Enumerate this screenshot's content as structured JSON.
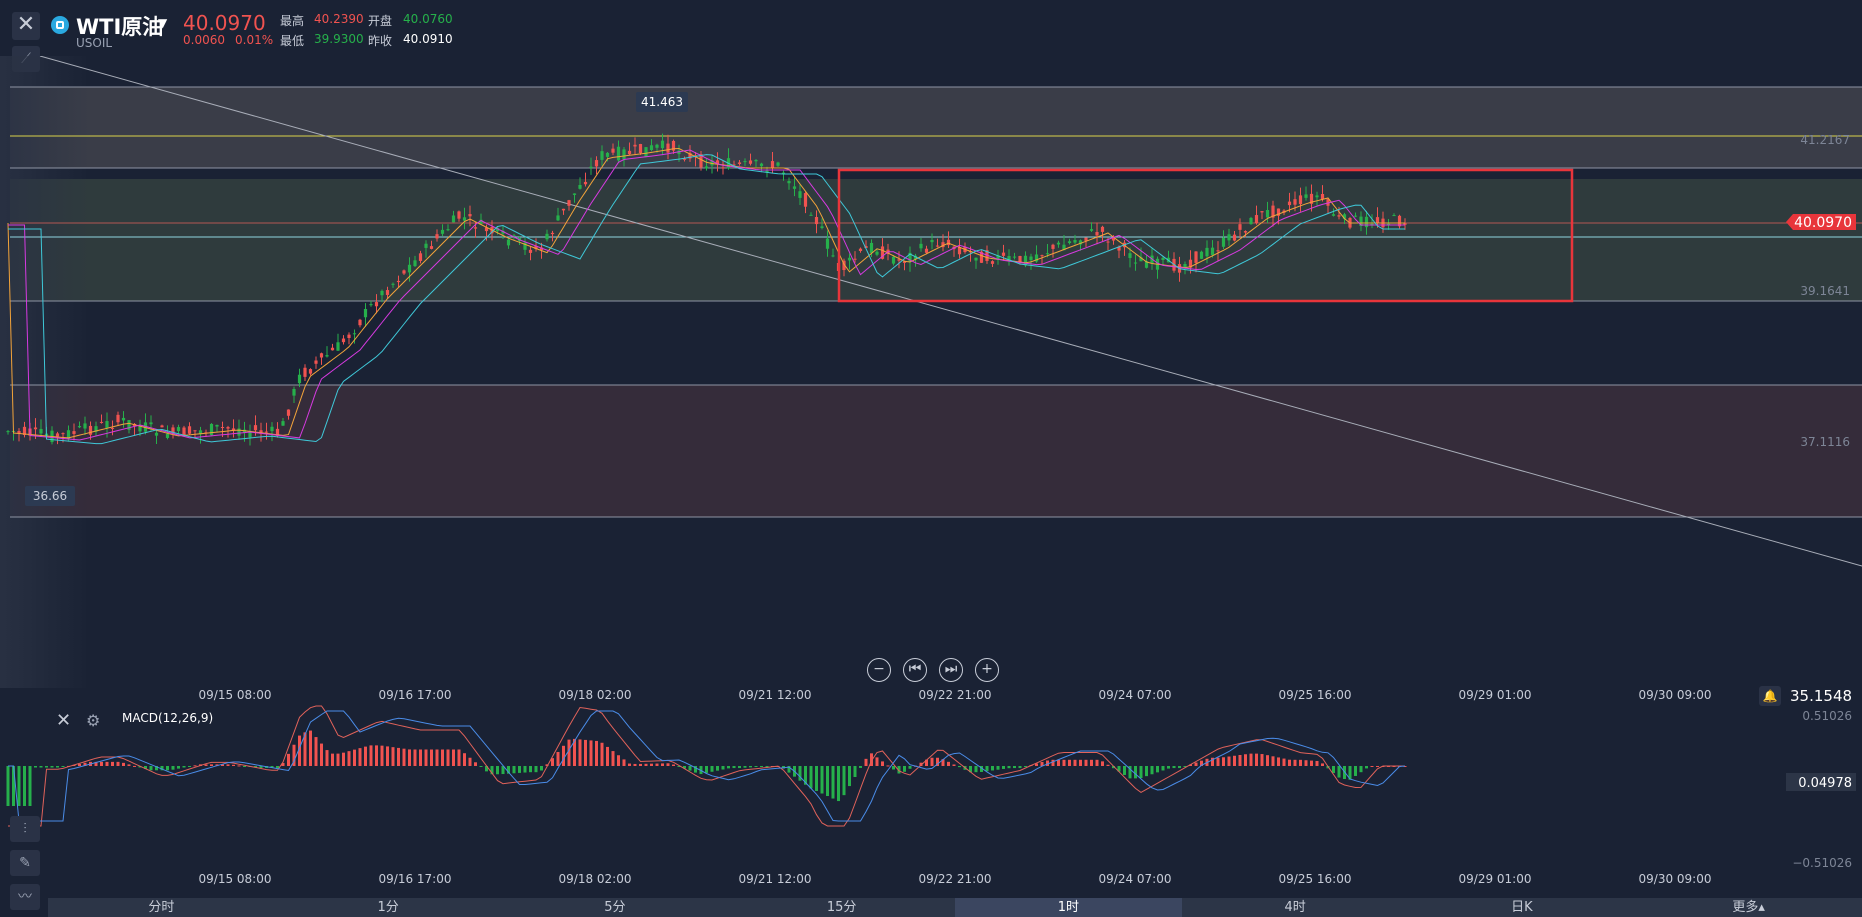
{
  "header": {
    "symbol_name": "WTI原油",
    "symbol_code": "USOIL",
    "last_price": "40.0970",
    "change": "0.0060",
    "change_pct": "0.01%",
    "high_label": "最高",
    "high": "40.2390",
    "open_label": "开盘",
    "open": "40.0760",
    "low_label": "最低",
    "low": "39.9300",
    "prev_close_label": "昨收",
    "prev_close": "40.0910",
    "close_icon": "close-icon",
    "draw_icon": "draw-tool-icon"
  },
  "chart": {
    "price_axis": {
      "level1": "41.2167",
      "level2": "39.1641",
      "level3": "37.1116"
    },
    "current_price_tag": "40.0970",
    "high_marker": "41.463",
    "low_marker": "36.66",
    "colors": {
      "up": "#f05350",
      "down": "#26b04b",
      "ma_orange": "#f2a33a",
      "ma_magenta": "#d63ae0",
      "ma_cyan": "#3fc8d8",
      "box": "#e8353b"
    }
  },
  "time_axis": [
    "09/15 08:00",
    "09/16 17:00",
    "09/18 02:00",
    "09/21 12:00",
    "09/22 21:00",
    "09/24 07:00",
    "09/25 16:00",
    "09/29 01:00",
    "09/30 09:00"
  ],
  "alert_value": "35.1548",
  "macd": {
    "title": "MACD(12,26,9)",
    "axis_top": "0.51026",
    "axis_current": "0.04978",
    "axis_bottom": "−0.51026"
  },
  "tabs": [
    {
      "label": "分时"
    },
    {
      "label": "1分"
    },
    {
      "label": "5分"
    },
    {
      "label": "15分"
    },
    {
      "label": "1时"
    },
    {
      "label": "4时"
    },
    {
      "label": "日K"
    },
    {
      "label": "更多▴"
    }
  ],
  "active_tab": "1时"
}
